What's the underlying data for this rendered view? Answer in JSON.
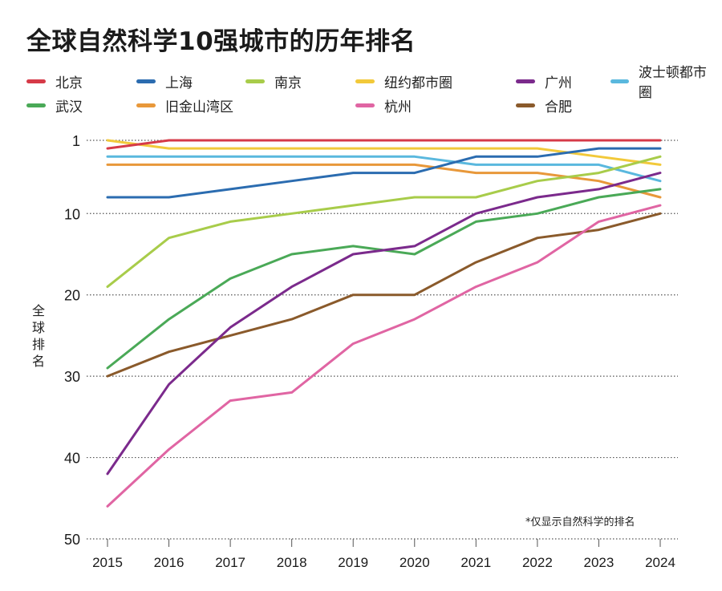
{
  "title": "全球自然科学10强城市的历年排名",
  "footnote": "*仅显示自然科学的排名",
  "chart_data": {
    "type": "line",
    "title": "全球自然科学10强城市的历年排名",
    "xlabel": "",
    "ylabel": "全球排名",
    "x": [
      2015,
      2016,
      2017,
      2018,
      2019,
      2020,
      2021,
      2022,
      2023,
      2024
    ],
    "x_tick_labels": [
      "2015",
      "2016",
      "2017",
      "2018",
      "2019",
      "2020",
      "2021",
      "2022",
      "2023",
      "2024"
    ],
    "y_ticks": [
      1,
      10,
      20,
      30,
      40,
      50
    ],
    "y_tick_labels": [
      "1",
      "10",
      "20",
      "30",
      "40",
      "50"
    ],
    "ylim": [
      1,
      50
    ],
    "y_inverted": true,
    "grid": "horizontal dotted",
    "legend_position": "top",
    "series": [
      {
        "name": "北京",
        "color": "#d63a48",
        "values": [
          2,
          1,
          1,
          1,
          1,
          1,
          1,
          1,
          1,
          1
        ]
      },
      {
        "name": "上海",
        "color": "#2b6cb0",
        "values": [
          8,
          8,
          7,
          6,
          5,
          5,
          3,
          3,
          2,
          2
        ]
      },
      {
        "name": "南京",
        "color": "#a8cc4a",
        "values": [
          19,
          13,
          11,
          10,
          9,
          8,
          8,
          6,
          5,
          3
        ]
      },
      {
        "name": "纽约都市圈",
        "color": "#f2c93a",
        "values": [
          1,
          2,
          2,
          2,
          2,
          2,
          2,
          2,
          3,
          4
        ]
      },
      {
        "name": "广州",
        "color": "#7b2a8c",
        "values": [
          42,
          31,
          24,
          19,
          15,
          14,
          10,
          8,
          7,
          5
        ]
      },
      {
        "name": "波士顿都市圈",
        "color": "#5ab8de",
        "values": [
          3,
          3,
          3,
          3,
          3,
          3,
          4,
          4,
          4,
          6
        ]
      },
      {
        "name": "武汉",
        "color": "#4aa957",
        "values": [
          29,
          23,
          18,
          15,
          14,
          15,
          11,
          10,
          8,
          7
        ]
      },
      {
        "name": "旧金山湾区",
        "color": "#e8983a",
        "values": [
          4,
          4,
          4,
          4,
          4,
          4,
          5,
          5,
          6,
          8
        ]
      },
      {
        "name": "杭州",
        "color": "#e065a3",
        "values": [
          46,
          39,
          33,
          32,
          26,
          23,
          19,
          16,
          11,
          9
        ]
      },
      {
        "name": "合肥",
        "color": "#8a5a2b",
        "values": [
          30,
          27,
          25,
          23,
          20,
          20,
          16,
          13,
          12,
          10
        ]
      }
    ]
  }
}
